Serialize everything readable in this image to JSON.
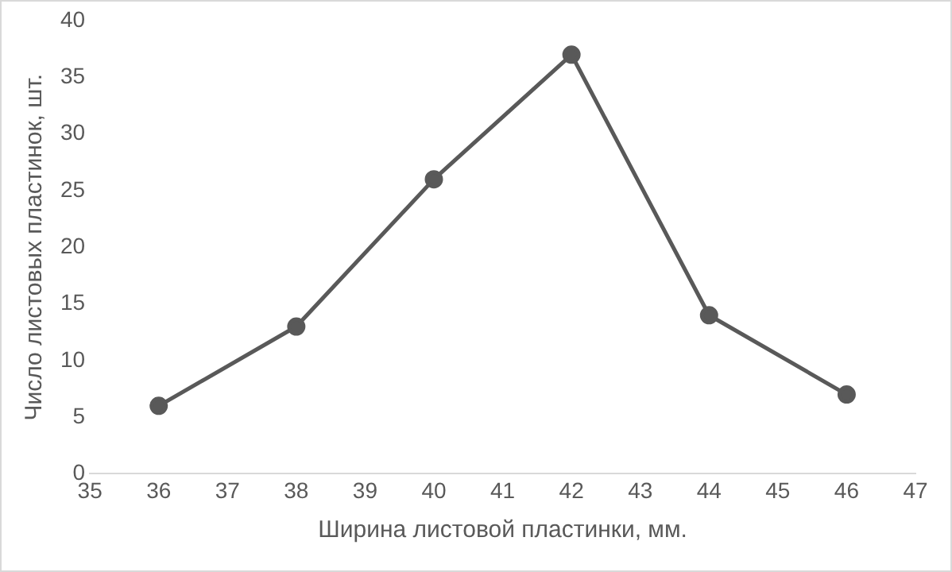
{
  "chart_data": {
    "type": "line",
    "xlabel": "Ширина листовой пластинки, мм.",
    "ylabel": "Число листовых пластинок, шт.",
    "x": [
      36,
      38,
      40,
      42,
      44,
      46
    ],
    "series": [
      {
        "color": "#595959",
        "values": [
          6,
          13,
          26,
          37,
          14,
          7
        ]
      }
    ],
    "xlim": [
      35,
      47
    ],
    "xticks": [
      35,
      36,
      37,
      38,
      39,
      40,
      41,
      42,
      43,
      44,
      45,
      46,
      47
    ],
    "ylim": [
      0,
      40
    ],
    "yticks": [
      0,
      5,
      10,
      15,
      20,
      25,
      30,
      35,
      40
    ],
    "grid": false,
    "legend": false,
    "marker": "circle",
    "line_style": "solid"
  }
}
